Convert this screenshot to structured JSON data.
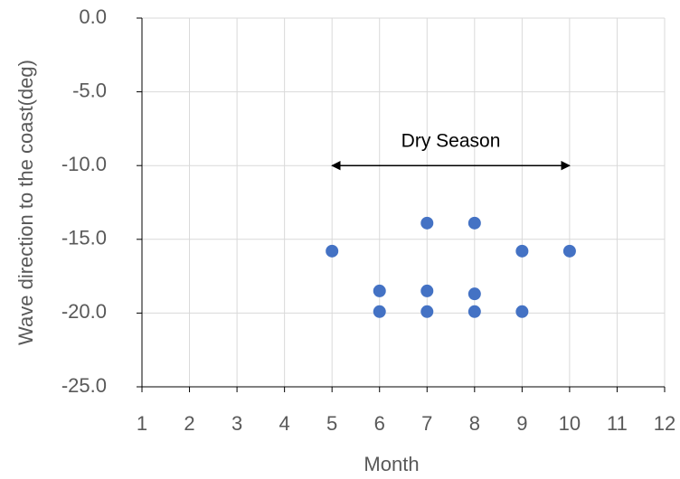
{
  "chart_data": {
    "type": "scatter",
    "xlabel": "Month",
    "ylabel": "Wave direction to the coast(deg)",
    "x": [
      5,
      6,
      6,
      7,
      7,
      7,
      8,
      8,
      8,
      9,
      9,
      10
    ],
    "series": [
      {
        "name": "Wave direction",
        "color": "#4472c4",
        "values": [
          -15.8,
          -18.5,
          -19.9,
          -13.9,
          -18.5,
          -19.9,
          -13.9,
          -18.7,
          -19.9,
          -15.8,
          -19.9,
          -15.8
        ]
      }
    ],
    "xlim": [
      1,
      12
    ],
    "xticks": [
      1,
      2,
      3,
      4,
      5,
      6,
      7,
      8,
      9,
      10,
      11,
      12
    ],
    "ylim": [
      -25,
      0
    ],
    "yticks": [
      {
        "value": 0,
        "label": "0.0"
      },
      {
        "value": -5,
        "label": "-5.0"
      },
      {
        "value": -10,
        "label": "-10.0"
      },
      {
        "value": -15,
        "label": "-15.0"
      },
      {
        "value": -20,
        "label": "-20.0"
      },
      {
        "value": -25,
        "label": "-25.0"
      }
    ],
    "grid": true,
    "annotations": [
      {
        "text": "Dry Season",
        "x": [
          5,
          10
        ],
        "y": -10
      }
    ]
  }
}
